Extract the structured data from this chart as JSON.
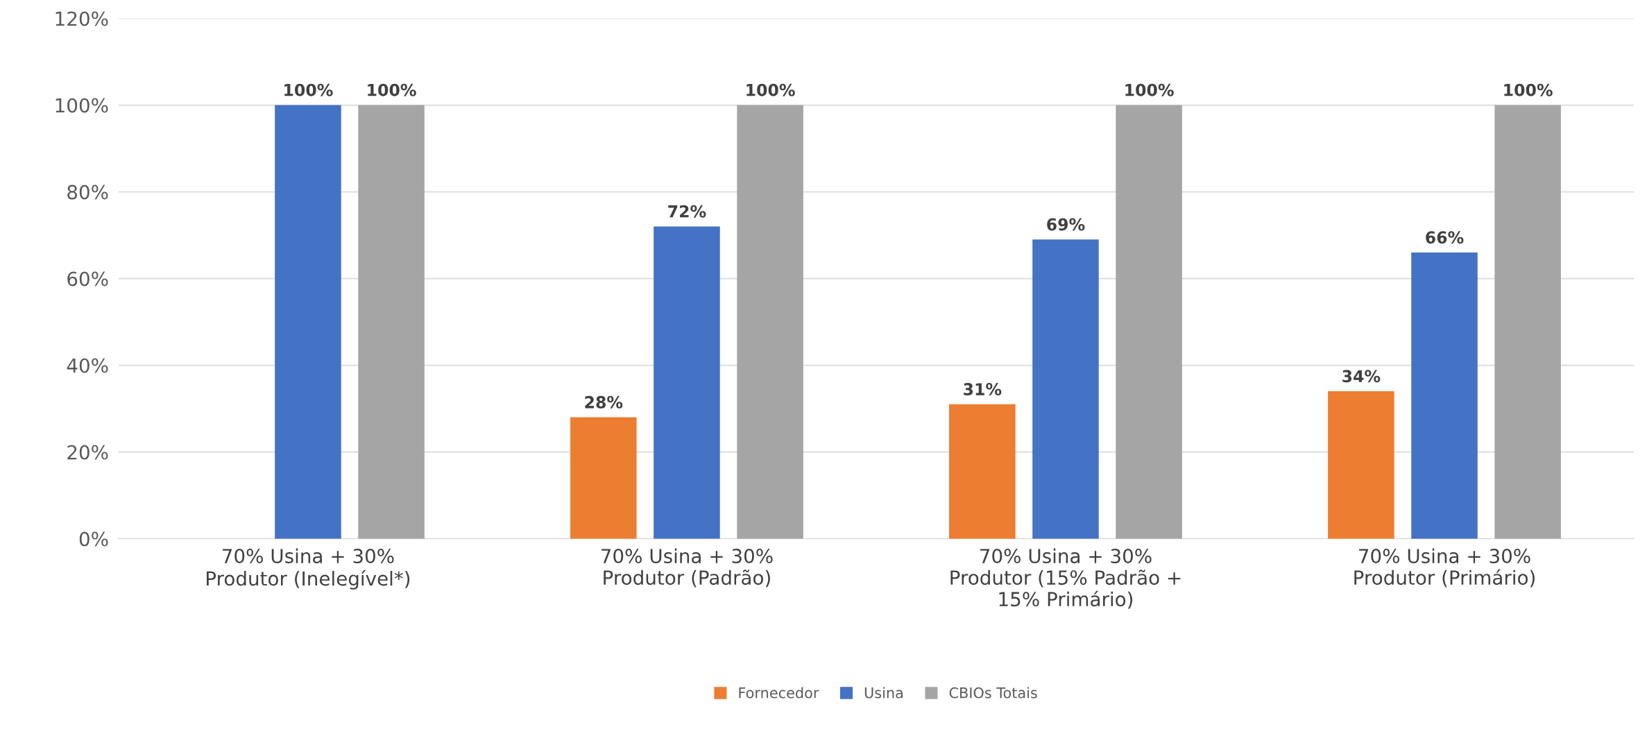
{
  "chart_data": {
    "type": "bar",
    "categories": [
      "70% Usina + 30%\nProdutor (Inelegível*)",
      "70% Usina + 30%\nProdutor (Padrão)",
      "70% Usina + 30%\nProdutor (15% Padrão +\n15% Primário)",
      "70% Usina + 30%\nProdutor (Primário)"
    ],
    "series": [
      {
        "name": "Fornecedor",
        "color": "#ed7d31",
        "values": [
          null,
          28,
          31,
          34
        ],
        "value_labels": [
          null,
          "28%",
          "31%",
          "34%"
        ]
      },
      {
        "name": "Usina",
        "color": "#4472c4",
        "values": [
          100,
          72,
          69,
          66
        ],
        "value_labels": [
          "100%",
          "72%",
          "69%",
          "66%"
        ]
      },
      {
        "name": "CBIOs Totais",
        "color": "#a5a5a5",
        "values": [
          100,
          100,
          100,
          100
        ],
        "value_labels": [
          "100%",
          "100%",
          "100%",
          "100%"
        ]
      }
    ],
    "ylim": [
      0,
      120
    ],
    "yticks": [
      {
        "value": 0,
        "label": "0%"
      },
      {
        "value": 20,
        "label": "20%"
      },
      {
        "value": 40,
        "label": "40%"
      },
      {
        "value": 60,
        "label": "60%"
      },
      {
        "value": 80,
        "label": "80%"
      },
      {
        "value": 100,
        "label": "100%"
      },
      {
        "value": 120,
        "label": "120%"
      }
    ],
    "grid": "y",
    "legend": "bottom"
  }
}
